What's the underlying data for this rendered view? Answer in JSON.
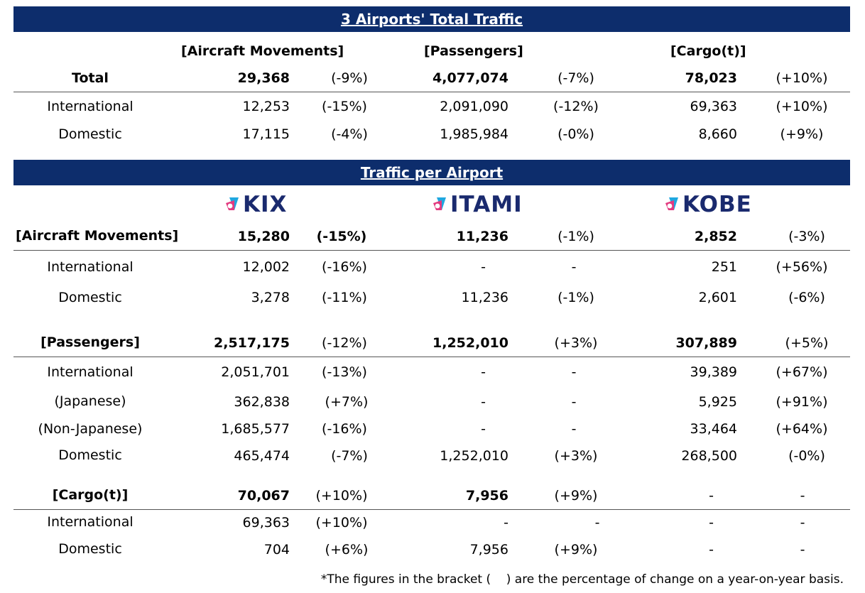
{
  "totals": {
    "title": "3 Airports' Total Traffic",
    "headers": {
      "movements": "[Aircraft Movements]",
      "passengers": "[Passengers]",
      "cargo": "[Cargo(t)]"
    },
    "rows": [
      {
        "label": "Total",
        "mv": "29,368",
        "mvp": "(-9%)",
        "px": "4,077,074",
        "pxp": "(-7%)",
        "cg": "78,023",
        "cgp": "(+10%)"
      },
      {
        "label": "International",
        "mv": "12,253",
        "mvp": "(-15%)",
        "px": "2,091,090",
        "pxp": "(-12%)",
        "cg": "69,363",
        "cgp": "(+10%)"
      },
      {
        "label": "Domestic",
        "mv": "17,115",
        "mvp": "(-4%)",
        "px": "1,985,984",
        "pxp": "(-0%)",
        "cg": "8,660",
        "cgp": "(+9%)"
      }
    ]
  },
  "per_airport": {
    "title": "Traffic per Airport",
    "logos": {
      "kix": "KIX",
      "itami": "ITAMI",
      "kobe": "KOBE"
    },
    "movements": [
      {
        "label": "[Aircraft Movements]",
        "kix": "15,280",
        "kixp": "(-15%)",
        "itm": "11,236",
        "itmp": "(-1%)",
        "kob": "2,852",
        "kobp": "(-3%)"
      },
      {
        "label": "International",
        "kix": "12,002",
        "kixp": "(-16%)",
        "itm": "-",
        "itmp": "-",
        "kob": "251",
        "kobp": "(+56%)"
      },
      {
        "label": "Domestic",
        "kix": "3,278",
        "kixp": "(-11%)",
        "itm": "11,236",
        "itmp": "(-1%)",
        "kob": "2,601",
        "kobp": "(-6%)"
      }
    ],
    "passengers": [
      {
        "label": "[Passengers]",
        "kix": "2,517,175",
        "kixp": "(-12%)",
        "itm": "1,252,010",
        "itmp": "(+3%)",
        "kob": "307,889",
        "kobp": "(+5%)"
      },
      {
        "label": "International",
        "kix": "2,051,701",
        "kixp": "(-13%)",
        "itm": "-",
        "itmp": "-",
        "kob": "39,389",
        "kobp": "(+67%)"
      },
      {
        "label": "(Japanese)",
        "kix": "362,838",
        "kixp": "(+7%)",
        "itm": "-",
        "itmp": "-",
        "kob": "5,925",
        "kobp": "(+91%)"
      },
      {
        "label": "(Non-Japanese)",
        "kix": "1,685,577",
        "kixp": "(-16%)",
        "itm": "-",
        "itmp": "-",
        "kob": "33,464",
        "kobp": "(+64%)"
      },
      {
        "label": "Domestic",
        "kix": "465,474",
        "kixp": "(-7%)",
        "itm": "1,252,010",
        "itmp": "(+3%)",
        "kob": "268,500",
        "kobp": "(-0%)"
      }
    ],
    "cargo": [
      {
        "label": "[Cargo(t)]",
        "kix": "70,067",
        "kixp": "(+10%)",
        "itm": "7,956",
        "itmp": "(+9%)",
        "kob": "-",
        "kobp": "-"
      },
      {
        "label": "International",
        "kix": "69,363",
        "kixp": "(+10%)",
        "itm": "-",
        "itmp": "-",
        "kob": "-",
        "kobp": "-"
      },
      {
        "label": "Domestic",
        "kix": "704",
        "kixp": "(+6%)",
        "itm": "7,956",
        "itmp": "(+9%)",
        "kob": "-",
        "kobp": "-"
      }
    ]
  },
  "footnote": "*The figures in the bracket (    ) are the percentage of change on a year-on-year basis."
}
